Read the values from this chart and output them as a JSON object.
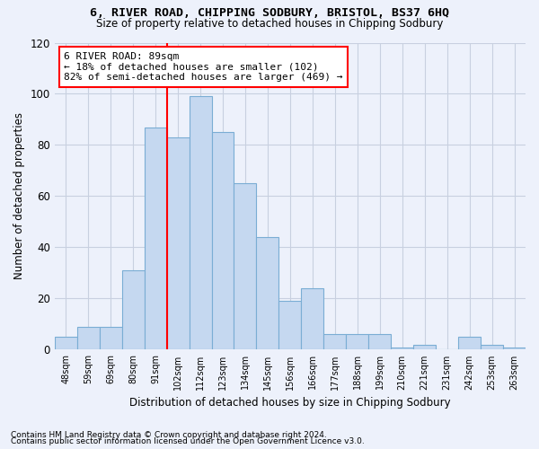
{
  "title_line1": "6, RIVER ROAD, CHIPPING SODBURY, BRISTOL, BS37 6HQ",
  "title_line2": "Size of property relative to detached houses in Chipping Sodbury",
  "xlabel": "Distribution of detached houses by size in Chipping Sodbury",
  "ylabel": "Number of detached properties",
  "categories": [
    "48sqm",
    "59sqm",
    "69sqm",
    "80sqm",
    "91sqm",
    "102sqm",
    "112sqm",
    "123sqm",
    "134sqm",
    "145sqm",
    "156sqm",
    "166sqm",
    "177sqm",
    "188sqm",
    "199sqm",
    "210sqm",
    "221sqm",
    "231sqm",
    "242sqm",
    "253sqm",
    "263sqm"
  ],
  "values": [
    5,
    9,
    9,
    31,
    87,
    83,
    99,
    85,
    65,
    44,
    19,
    24,
    6,
    6,
    6,
    1,
    2,
    0,
    5,
    2,
    1
  ],
  "bar_color": "#c5d8f0",
  "bar_edge_color": "#7aadd4",
  "vline_color": "red",
  "vline_x_index": 4,
  "annotation_text": "6 RIVER ROAD: 89sqm\n← 18% of detached houses are smaller (102)\n82% of semi-detached houses are larger (469) →",
  "annotation_box_color": "white",
  "annotation_box_edge": "red",
  "ylim": [
    0,
    120
  ],
  "yticks": [
    0,
    20,
    40,
    60,
    80,
    100,
    120
  ],
  "grid_color": "#c8d0e0",
  "bg_color": "#edf1fb",
  "footnote1": "Contains HM Land Registry data © Crown copyright and database right 2024.",
  "footnote2": "Contains public sector information licensed under the Open Government Licence v3.0."
}
